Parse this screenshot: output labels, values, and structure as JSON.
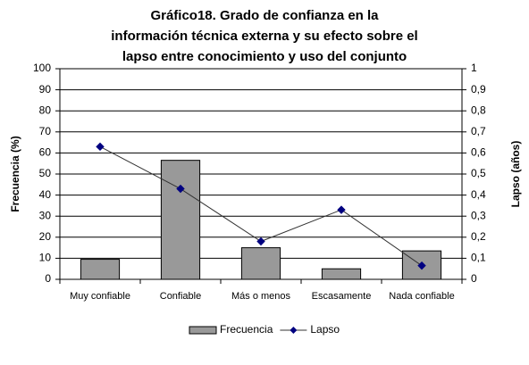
{
  "chart_data": {
    "type": "bar_line",
    "title": [
      "Gráfico18. Grado de confianza en la",
      "información técnica externa y su efecto sobre el",
      "lapso entre conocimiento y uso del conjunto"
    ],
    "ylabel": "Frecuencia (%)",
    "y2label": "Lapso (años)",
    "categories": [
      "Muy confiable",
      "Confiable",
      "Más o menos",
      "Escasamente",
      "Nada confiable"
    ],
    "series": [
      {
        "name": "Frecuencia",
        "color": "#999999",
        "values": [
          9.5,
          56.5,
          15,
          5,
          13.5
        ]
      },
      {
        "name": "Lapso",
        "color": "#000080",
        "axis": "y2",
        "values": [
          0.63,
          0.43,
          0.18,
          0.33,
          0.065
        ]
      }
    ],
    "ylim": [
      0,
      100
    ],
    "yticks": [
      0,
      10,
      20,
      30,
      40,
      50,
      60,
      70,
      80,
      90,
      100
    ],
    "y2lim": [
      0,
      1
    ],
    "y2ticks": [
      0,
      {
        "value": 0.1,
        "label": "0,1"
      },
      {
        "value": 0.2,
        "label": "0,2"
      },
      {
        "value": 0.3,
        "label": "0,3"
      },
      {
        "value": 0.4,
        "label": "0,4"
      },
      {
        "value": 0.5,
        "label": "0,5"
      },
      {
        "value": 0.6,
        "label": "0,6"
      },
      {
        "value": 0.7,
        "label": "0,7"
      },
      {
        "value": 0.8,
        "label": "0,8"
      },
      {
        "value": 0.9,
        "label": "0,9"
      },
      1
    ],
    "grid": true,
    "legend": "bottom"
  }
}
